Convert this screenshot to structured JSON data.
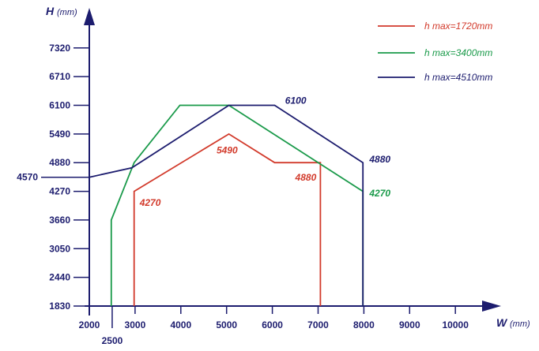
{
  "chart_data": {
    "type": "line",
    "title": "",
    "xlabel": "W",
    "xunit": "(mm)",
    "ylabel": "H",
    "yunit": "(mm)",
    "x_ticks": [
      "2000",
      "3000",
      "4000",
      "5000",
      "6000",
      "7000",
      "8000",
      "9000",
      "10000"
    ],
    "x_extra_ticks": [
      "2500"
    ],
    "y_ticks": [
      "1830",
      "2440",
      "3050",
      "3660",
      "4270",
      "4880",
      "5490",
      "6100",
      "6710",
      "7320"
    ],
    "y_extra_ticks": [
      "4570"
    ],
    "xlim": [
      1900,
      10300
    ],
    "ylim": [
      1830,
      7900
    ],
    "grid": false,
    "legend_position": "top-right",
    "series": [
      {
        "name": "h max=1720mm",
        "color": "#d23a2b",
        "points": [
          [
            2980,
            1830
          ],
          [
            2980,
            4270
          ],
          [
            5050,
            5490
          ],
          [
            6050,
            4880
          ],
          [
            7050,
            4880
          ],
          [
            7050,
            1830
          ]
        ],
        "labels": [
          {
            "text": "4270",
            "x": 3100,
            "y": 3960
          },
          {
            "text": "5490",
            "x": 4780,
            "y": 5080
          },
          {
            "text": "4880",
            "x": 6500,
            "y": 4500
          }
        ]
      },
      {
        "name": "h max=3400mm",
        "color": "#1a9a4a",
        "points": [
          [
            2480,
            1830
          ],
          [
            2480,
            3660
          ],
          [
            2980,
            4880
          ],
          [
            3980,
            6100
          ],
          [
            5050,
            6100
          ],
          [
            7980,
            4270
          ],
          [
            7980,
            1830
          ]
        ],
        "labels": [
          {
            "text": "4270",
            "x": 8120,
            "y": 4160
          }
        ]
      },
      {
        "name": "h max=4510mm",
        "color": "#1c1c6e",
        "points": [
          [
            2000,
            4570
          ],
          [
            2930,
            4770
          ],
          [
            5050,
            6100
          ],
          [
            6050,
            6100
          ],
          [
            7980,
            4880
          ],
          [
            7980,
            1830
          ]
        ],
        "labels": [
          {
            "text": "6100",
            "x": 6280,
            "y": 6130
          },
          {
            "text": "4880",
            "x": 8120,
            "y": 4880
          }
        ]
      }
    ]
  }
}
